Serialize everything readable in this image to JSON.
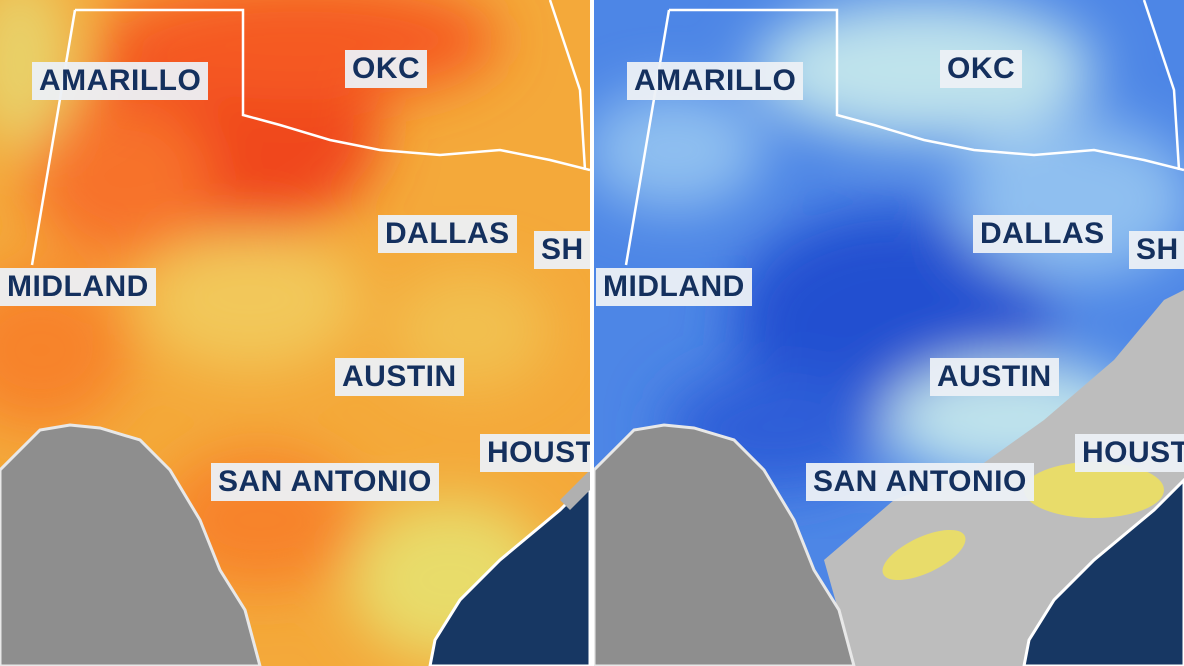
{
  "panels": [
    {
      "name": "left-map",
      "colors": {
        "base": "#f4a93a",
        "hot": "#f0461e",
        "warm": "#f7832a",
        "mild": "#e8dc6a",
        "land_outside": "#8e8e8e",
        "ocean": "#173763",
        "border": "#ffffff"
      },
      "labels": [
        "AMARILLO",
        "OKC",
        "DALLAS",
        "SH",
        "MIDLAND",
        "AUSTIN",
        "SAN ANTONIO",
        "HOUST"
      ]
    },
    {
      "name": "right-map",
      "colors": {
        "base": "#4d86e6",
        "deep": "#2350d0",
        "light": "#bfe3ec",
        "pale": "#8fbff0",
        "dry_gray": "#bdbdbd",
        "yellow": "#e8dc6a",
        "land_outside": "#8e8e8e",
        "ocean": "#173763",
        "border": "#ffffff"
      },
      "labels": [
        "AMARILLO",
        "OKC",
        "DALLAS",
        "SH",
        "MIDLAND",
        "AUSTIN",
        "SAN ANTONIO",
        "HOUST"
      ]
    }
  ]
}
